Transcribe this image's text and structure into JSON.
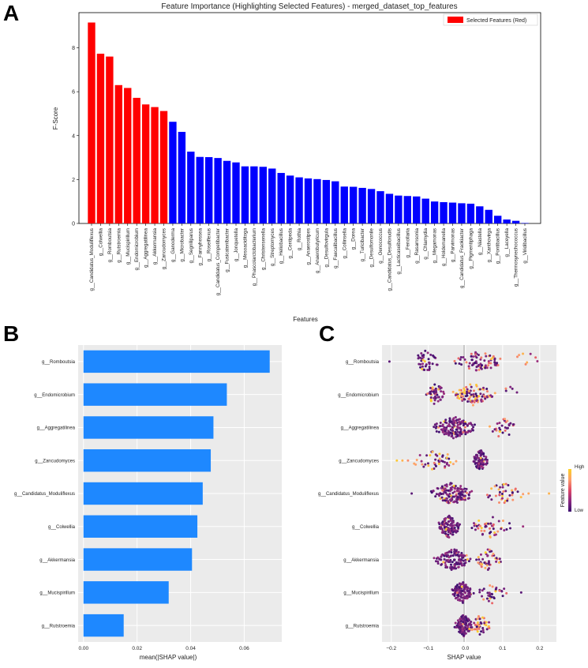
{
  "panels": {
    "a": "A",
    "b": "B",
    "c": "C"
  },
  "chart_data": [
    {
      "id": "A",
      "type": "bar",
      "title": "Feature Importance (Highlighting Selected Features) - merged_dataset_top_features",
      "xlabel": "Features",
      "ylabel": "F-Score",
      "ylim": [
        0,
        9.6
      ],
      "yticks": [
        0,
        2,
        4,
        6,
        8
      ],
      "legend": {
        "label": "Selected Features (Red)",
        "color": "#ff0000",
        "placement": "top-right"
      },
      "colors": {
        "selected": "#ff0000",
        "other": "#0000ff"
      },
      "categories": [
        "g__Candidatus_Moduliflexus",
        "g__Colwellia",
        "g__Romboutsia",
        "g__Rutstroemia",
        "g__Mucispirillum",
        "g__Endomicrobium",
        "g__Aggregatilinea",
        "g__Akkermansia",
        "g__Zancudomyces",
        "g__Ganoderma",
        "g__Microbacter",
        "g__Segniliparus",
        "g__Fannyhessea",
        "g__Roseiflexus",
        "g__Candidatus_Competibacter",
        "g__Fusicatenibacter",
        "g__Jonquetella",
        "g__Mesoaciditoga",
        "g__Phascolarctobacterium",
        "g__Christensenella",
        "g__Streptomyces",
        "g__Heliobacillus",
        "g__Centipeda",
        "g__Rothia",
        "g__Anaerostipes",
        "g__Anaerobutyricum",
        "g__Desulfovirgula",
        "g__Faecalibacillus",
        "g__Collinsella",
        "g__Dorea",
        "g__Turicibacter",
        "g__Desulfomonile",
        "g__Oenococcus",
        "g__Candidatus_Desulforudis",
        "g__Lacticaseibacillus",
        "g__Fenollaria",
        "g__Rasamsonia",
        "g__Chlamydia",
        "g__Megamonas",
        "g__Holdemanella",
        "g__Parvimonas",
        "g__Candidatus_Fraokiacter",
        "g__Pigmentiphaga",
        "g__Niastella",
        "g__Xanthovirga",
        "g__Pontibacillus",
        "g__Laceyella",
        "g__Thermosynechococcus",
        "g__Viridibacillus"
      ],
      "values": [
        9.15,
        7.73,
        7.6,
        6.3,
        6.17,
        5.72,
        5.42,
        5.3,
        5.12,
        4.63,
        4.17,
        3.27,
        3.03,
        3.02,
        2.98,
        2.85,
        2.78,
        2.6,
        2.6,
        2.58,
        2.5,
        2.3,
        2.18,
        2.1,
        2.05,
        2.02,
        1.98,
        1.92,
        1.68,
        1.67,
        1.62,
        1.57,
        1.47,
        1.35,
        1.27,
        1.25,
        1.23,
        1.13,
        1.0,
        0.97,
        0.95,
        0.92,
        0.9,
        0.78,
        0.62,
        0.35,
        0.18,
        0.12,
        0.02
      ],
      "selected_count": 9
    },
    {
      "id": "B",
      "type": "bar",
      "orientation": "horizontal",
      "xlabel": "mean(|SHAP value|)",
      "xlim": [
        -0.002,
        0.074
      ],
      "xticks": [
        0.0,
        0.02,
        0.04,
        0.06
      ],
      "xtick_labels": [
        "0.00",
        "0.02",
        "0.04",
        "0.06"
      ],
      "color": "#1e88ff",
      "categories": [
        "g__Romboutsia",
        "g__Endomicrobium",
        "g__Aggregatilinea",
        "g__Zancudomyces",
        "g__Candidatus_Moduliflexus",
        "g__Colwellia",
        "g__Akkermansia",
        "g__Mucispirillum",
        "g__Rutstroemia"
      ],
      "values": [
        0.0695,
        0.0535,
        0.0485,
        0.0475,
        0.0445,
        0.0425,
        0.0405,
        0.0318,
        0.015
      ]
    },
    {
      "id": "C",
      "type": "scatter",
      "subtype": "beeswarm",
      "xlabel": "SHAP value",
      "xlim": [
        -0.225,
        0.245
      ],
      "xticks": [
        -0.2,
        -0.1,
        0.0,
        0.1,
        0.2
      ],
      "xtick_labels": [
        "−0.2",
        "−0.1",
        "0.0",
        "0.1",
        "0.2"
      ],
      "colorbar": {
        "label": "Feature value",
        "high": "High",
        "low": "Low",
        "colors": [
          "#3b0f70",
          "#8c2981",
          "#de4968",
          "#fe9f6d",
          "#fcd225"
        ]
      },
      "categories": [
        "g__Romboutsia",
        "g__Endomicrobium",
        "g__Aggregatilinea",
        "g__Zancudomyces",
        "g__Candidatus_Moduliflexus",
        "g__Colwellia",
        "g__Akkermansia",
        "g__Mucispirillum",
        "g__Rutstroemia"
      ],
      "series": [
        {
          "name": "g__Romboutsia",
          "clusters": [
            [
              -0.15,
              -0.07,
              40,
              0.1
            ],
            [
              -0.03,
              0.1,
              80,
              0.3
            ],
            [
              0.12,
              0.2,
              8,
              0.8
            ]
          ],
          "outliers": [
            [
              -0.205,
              0.1
            ]
          ]
        },
        {
          "name": "g__Endomicrobium",
          "clusters": [
            [
              -0.11,
              -0.05,
              45,
              0.1
            ],
            [
              -0.04,
              0.08,
              95,
              0.5
            ],
            [
              0.09,
              0.14,
              5,
              0.3
            ]
          ]
        },
        {
          "name": "g__Aggregatilinea",
          "clusters": [
            [
              -0.09,
              0.03,
              150,
              0.1
            ],
            [
              0.06,
              0.14,
              30,
              0.3
            ]
          ]
        },
        {
          "name": "g__Zancudomyces",
          "clusters": [
            [
              -0.15,
              -0.02,
              45,
              0.4
            ],
            [
              0.02,
              0.06,
              90,
              0.05
            ]
          ],
          "outliers": [
            [
              -0.185,
              0.95
            ],
            [
              -0.17,
              0.85
            ],
            [
              -0.155,
              0.7
            ]
          ]
        },
        {
          "name": "g__Candidatus_Moduliflexus",
          "clusters": [
            [
              -0.1,
              0.03,
              140,
              0.05
            ],
            [
              0.04,
              0.16,
              40,
              0.6
            ]
          ],
          "outliers": [
            [
              -0.145,
              0.1
            ],
            [
              0.225,
              0.85
            ],
            [
              0.17,
              0.8
            ]
          ]
        },
        {
          "name": "g__Colwellia",
          "clusters": [
            [
              -0.08,
              -0.01,
              120,
              0.05
            ],
            [
              0.0,
              0.13,
              45,
              0.5
            ]
          ],
          "outliers": [
            [
              0.155,
              0.3
            ]
          ]
        },
        {
          "name": "g__Akkermansia",
          "clusters": [
            [
              -0.09,
              0.02,
              120,
              0.05
            ],
            [
              0.02,
              0.1,
              45,
              0.6
            ]
          ]
        },
        {
          "name": "g__Mucispirillum",
          "clusters": [
            [
              -0.04,
              0.02,
              110,
              0.05
            ],
            [
              0.02,
              0.12,
              35,
              0.3
            ]
          ],
          "outliers": [
            [
              0.15,
              0.1
            ]
          ]
        },
        {
          "name": "g__Rutstroemia",
          "clusters": [
            [
              -0.03,
              0.02,
              120,
              0.05
            ],
            [
              0.01,
              0.07,
              45,
              0.6
            ]
          ]
        }
      ]
    }
  ]
}
